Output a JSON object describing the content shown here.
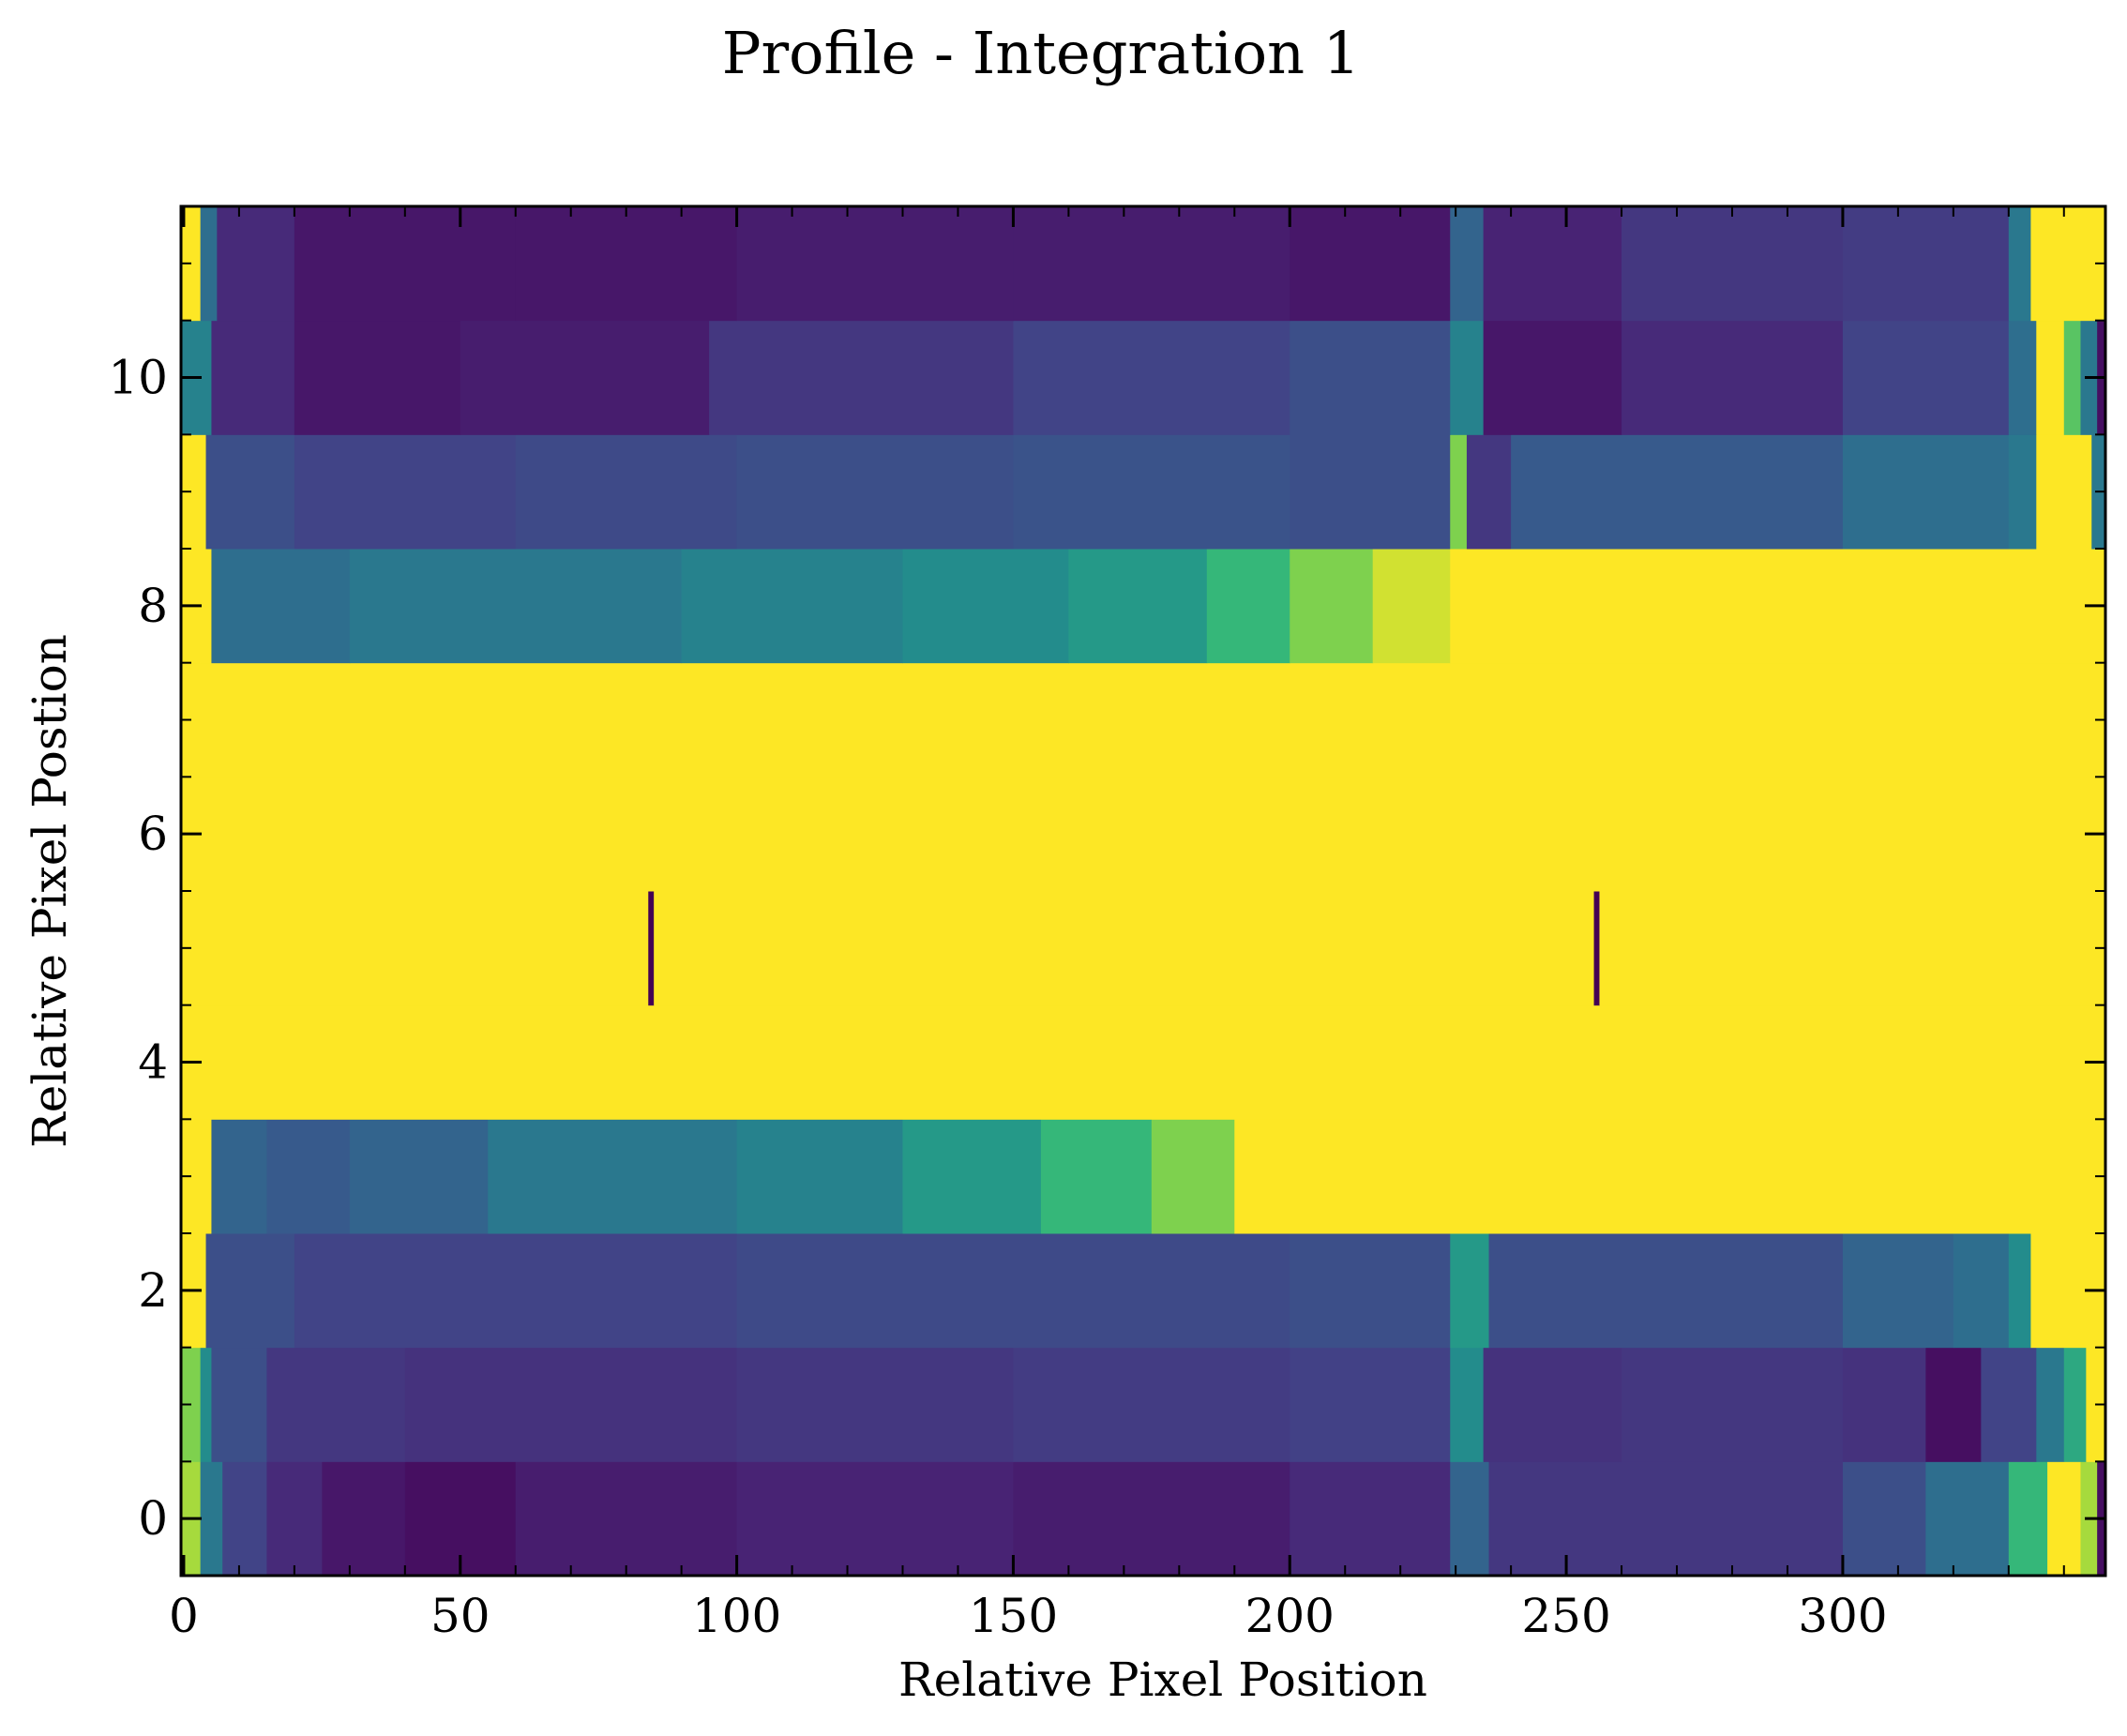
{
  "chart_data": {
    "type": "heatmap",
    "title": "Profile - Integration 1",
    "xlabel": "Relative Pixel Position",
    "ylabel": "Relative Pixel Postion",
    "xlim": [
      -0.5,
      347.5
    ],
    "ylim": [
      -0.5,
      11.5
    ],
    "x_ticks": [
      0,
      50,
      100,
      150,
      200,
      250,
      300
    ],
    "x_tick_labels": [
      "0",
      "50",
      "100",
      "150",
      "200",
      "250",
      "300"
    ],
    "y_ticks": [
      0,
      2,
      4,
      6,
      8,
      10
    ],
    "y_tick_labels": [
      "0",
      "2",
      "4",
      "6",
      "8",
      "10"
    ],
    "colormap": "viridis",
    "color_scale_note": "values normalized 0 (dark purple) to 1 (yellow, saturated)",
    "rows": [
      {
        "y": 0,
        "segments": [
          [
            -0.5,
            0.9
          ],
          [
            3,
            0.5
          ],
          [
            7,
            0.25
          ],
          [
            15,
            0.15
          ],
          [
            25,
            0.08
          ],
          [
            40,
            0.05
          ],
          [
            60,
            0.1
          ],
          [
            100,
            0.12
          ],
          [
            150,
            0.1
          ],
          [
            200,
            0.15
          ],
          [
            229,
            0.4
          ],
          [
            236,
            0.2
          ],
          [
            300,
            0.3
          ],
          [
            315,
            0.45
          ],
          [
            330,
            0.75
          ],
          [
            337,
            1.0
          ],
          [
            343,
            0.9
          ],
          [
            346,
            0.05
          ]
        ]
      },
      {
        "y": 1,
        "segments": [
          [
            -0.5,
            0.85
          ],
          [
            3,
            0.6
          ],
          [
            5,
            0.3
          ],
          [
            15,
            0.2
          ],
          [
            40,
            0.18
          ],
          [
            100,
            0.2
          ],
          [
            150,
            0.22
          ],
          [
            200,
            0.24
          ],
          [
            229,
            0.6
          ],
          [
            235,
            0.18
          ],
          [
            260,
            0.2
          ],
          [
            300,
            0.18
          ],
          [
            315,
            0.05
          ],
          [
            325,
            0.25
          ],
          [
            335,
            0.5
          ],
          [
            340,
            0.7
          ],
          [
            344,
            1.0
          ]
        ]
      },
      {
        "y": 2,
        "segments": [
          [
            -0.5,
            1.0
          ],
          [
            4,
            0.3
          ],
          [
            20,
            0.25
          ],
          [
            100,
            0.28
          ],
          [
            200,
            0.3
          ],
          [
            229,
            0.65
          ],
          [
            236,
            0.3
          ],
          [
            300,
            0.4
          ],
          [
            320,
            0.45
          ],
          [
            330,
            0.6
          ],
          [
            334,
            1.0
          ]
        ]
      },
      {
        "y": 3,
        "segments": [
          [
            -0.5,
            1.0
          ],
          [
            5,
            0.4
          ],
          [
            15,
            0.35
          ],
          [
            30,
            0.4
          ],
          [
            55,
            0.5
          ],
          [
            100,
            0.55
          ],
          [
            130,
            0.65
          ],
          [
            155,
            0.75
          ],
          [
            175,
            0.85
          ],
          [
            190,
            1.0
          ]
        ]
      },
      {
        "y": 4,
        "segments": [
          [
            -0.5,
            1.0
          ]
        ]
      },
      {
        "y": 5,
        "segments": [
          [
            -0.5,
            1.0
          ],
          [
            84,
            0.0
          ],
          [
            85,
            1.0
          ],
          [
            255,
            0.0
          ],
          [
            256,
            1.0
          ]
        ]
      },
      {
        "y": 6,
        "segments": [
          [
            -0.5,
            1.0
          ]
        ]
      },
      {
        "y": 7,
        "segments": [
          [
            -0.5,
            1.0
          ]
        ]
      },
      {
        "y": 8,
        "segments": [
          [
            -0.5,
            1.0
          ],
          [
            5,
            0.45
          ],
          [
            30,
            0.5
          ],
          [
            90,
            0.55
          ],
          [
            130,
            0.6
          ],
          [
            160,
            0.65
          ],
          [
            185,
            0.75
          ],
          [
            200,
            0.85
          ],
          [
            215,
            0.95
          ],
          [
            229,
            1.0
          ]
        ]
      },
      {
        "y": 9,
        "segments": [
          [
            -0.5,
            1.0
          ],
          [
            4,
            0.3
          ],
          [
            20,
            0.25
          ],
          [
            60,
            0.28
          ],
          [
            100,
            0.3
          ],
          [
            150,
            0.32
          ],
          [
            200,
            0.3
          ],
          [
            229,
            0.85
          ],
          [
            232,
            0.2
          ],
          [
            240,
            0.35
          ],
          [
            300,
            0.45
          ],
          [
            330,
            0.5
          ],
          [
            335,
            1.0
          ],
          [
            345,
            0.5
          ]
        ]
      },
      {
        "y": 10,
        "segments": [
          [
            -0.5,
            0.55
          ],
          [
            5,
            0.15
          ],
          [
            20,
            0.08
          ],
          [
            50,
            0.1
          ],
          [
            95,
            0.2
          ],
          [
            150,
            0.25
          ],
          [
            200,
            0.3
          ],
          [
            229,
            0.55
          ],
          [
            235,
            0.08
          ],
          [
            260,
            0.15
          ],
          [
            300,
            0.25
          ],
          [
            330,
            0.45
          ],
          [
            335,
            1.0
          ],
          [
            340,
            0.8
          ],
          [
            343,
            0.5
          ],
          [
            346,
            0.05
          ]
        ]
      },
      {
        "y": 11,
        "segments": [
          [
            -0.5,
            1.0
          ],
          [
            3,
            0.45
          ],
          [
            6,
            0.15
          ],
          [
            20,
            0.08
          ],
          [
            60,
            0.08
          ],
          [
            100,
            0.1
          ],
          [
            150,
            0.1
          ],
          [
            200,
            0.08
          ],
          [
            229,
            0.4
          ],
          [
            235,
            0.12
          ],
          [
            260,
            0.2
          ],
          [
            300,
            0.22
          ],
          [
            330,
            0.5
          ],
          [
            334,
            1.0
          ]
        ]
      }
    ]
  }
}
